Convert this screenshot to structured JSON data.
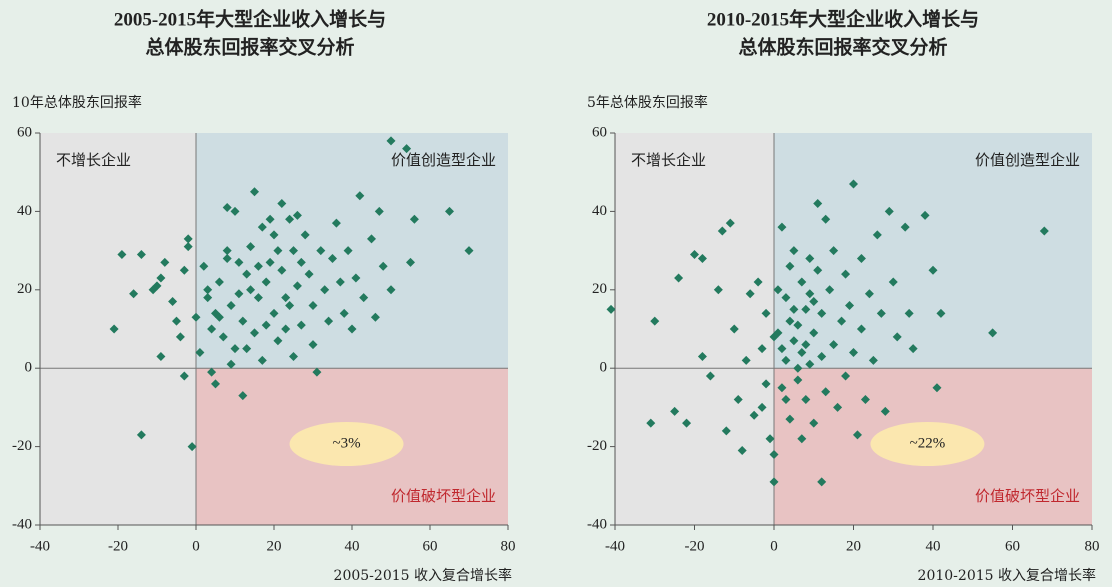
{
  "chart_data": [
    {
      "type": "scatter",
      "title": [
        "2005-2015年大型企业收入增长与",
        "总体股东回报率交叉分析"
      ],
      "ylabel": "10年总体股东回报率",
      "xlabel": "2005-2015 收入复合增长率",
      "quadrant_labels": {
        "no_growth": "不增长企业",
        "value_creating": "价值创造型企业",
        "value_destroying": "价值破坏型企业"
      },
      "callout": "~3%",
      "xlim": [
        -40,
        80
      ],
      "xticks": [
        -40,
        -20,
        0,
        20,
        40,
        60,
        80
      ],
      "ylim": [
        -40,
        60
      ],
      "yticks": [
        -40,
        -20,
        0,
        20,
        40,
        60
      ],
      "series": [
        {
          "color": "#237a5e",
          "x": [
            -21,
            -19,
            -16,
            -14,
            -14,
            -11,
            -10,
            -9,
            -9,
            -8,
            -6,
            -5,
            -4,
            -3,
            -3,
            -2,
            -1,
            -2,
            0,
            1,
            2,
            3,
            4,
            5,
            5,
            6,
            7,
            8,
            8,
            9,
            10,
            10,
            11,
            12,
            12,
            13,
            14,
            15,
            15,
            16,
            17,
            17,
            18,
            19,
            20,
            20,
            21,
            22,
            22,
            23,
            24,
            25,
            25,
            26,
            27,
            28,
            29,
            30,
            30,
            31,
            32,
            33,
            34,
            35,
            36,
            37,
            38,
            39,
            40,
            41,
            42,
            43,
            45,
            46,
            47,
            48,
            50,
            50,
            54,
            55,
            56,
            65,
            70,
            3,
            6,
            8,
            11,
            14,
            16,
            18,
            21,
            24,
            27,
            9,
            13,
            4,
            19,
            23,
            26
          ],
          "values": [
            10,
            29,
            19,
            29,
            -17,
            20,
            21,
            3,
            23,
            27,
            17,
            12,
            8,
            -2,
            25,
            31,
            -20,
            33,
            13,
            4,
            26,
            18,
            10,
            14,
            -4,
            22,
            8,
            41,
            28,
            16,
            5,
            40,
            19,
            12,
            -7,
            24,
            31,
            45,
            9,
            18,
            2,
            36,
            22,
            27,
            14,
            34,
            7,
            42,
            25,
            18,
            38,
            30,
            3,
            21,
            11,
            34,
            24,
            16,
            6,
            -1,
            30,
            20,
            12,
            28,
            37,
            22,
            14,
            30,
            10,
            23,
            44,
            18,
            33,
            13,
            40,
            26,
            58,
            20,
            56,
            27,
            38,
            40,
            30,
            20,
            13,
            30,
            27,
            20,
            26,
            11,
            30,
            16,
            27,
            1,
            5,
            -1,
            38,
            10,
            39
          ]
        }
      ]
    },
    {
      "type": "scatter",
      "title": [
        "2010-2015年大型企业收入增长与",
        "总体股东回报率交叉分析"
      ],
      "ylabel": "5年总体股东回报率",
      "xlabel": "2010-2015 收入复合增长率",
      "quadrant_labels": {
        "no_growth": "不增长企业",
        "value_creating": "价值创造型企业",
        "value_destroying": "价值破坏型企业"
      },
      "callout": "~22%",
      "xlim": [
        -40,
        80
      ],
      "xticks": [
        -40,
        -20,
        0,
        20,
        40,
        60,
        80
      ],
      "ylim": [
        -40,
        60
      ],
      "yticks": [
        -40,
        -20,
        0,
        20,
        40,
        60
      ],
      "series": [
        {
          "color": "#237a5e",
          "x": [
            -41,
            -30,
            -31,
            -25,
            -24,
            -22,
            -20,
            -18,
            -18,
            -16,
            -14,
            -13,
            -12,
            -11,
            -10,
            -9,
            -8,
            -7,
            -6,
            -5,
            -4,
            -3,
            -2,
            -2,
            -1,
            0,
            0,
            1,
            2,
            2,
            3,
            3,
            4,
            4,
            5,
            5,
            6,
            6,
            7,
            7,
            8,
            8,
            9,
            9,
            10,
            10,
            11,
            11,
            12,
            12,
            12,
            13,
            13,
            14,
            15,
            15,
            16,
            17,
            18,
            18,
            19,
            20,
            20,
            21,
            22,
            22,
            23,
            24,
            25,
            26,
            27,
            28,
            29,
            30,
            31,
            33,
            34,
            35,
            38,
            40,
            41,
            42,
            55,
            68,
            1,
            3,
            5,
            7,
            9,
            2,
            4,
            6,
            8,
            10,
            -3,
            0
          ],
          "values": [
            15,
            12,
            -14,
            -11,
            23,
            -14,
            29,
            28,
            3,
            -2,
            20,
            35,
            -16,
            37,
            10,
            -8,
            -21,
            2,
            19,
            -12,
            22,
            5,
            -4,
            14,
            -18,
            -22,
            -29,
            9,
            36,
            -5,
            18,
            2,
            26,
            -13,
            7,
            30,
            11,
            -3,
            4,
            22,
            15,
            -8,
            1,
            19,
            9,
            -14,
            42,
            25,
            3,
            -29,
            14,
            38,
            -6,
            20,
            6,
            30,
            -10,
            12,
            24,
            -2,
            16,
            4,
            47,
            -17,
            28,
            10,
            -8,
            19,
            2,
            34,
            14,
            -11,
            40,
            22,
            8,
            36,
            14,
            5,
            39,
            25,
            -5,
            14,
            9,
            35,
            20,
            -8,
            15,
            -18,
            28,
            5,
            12,
            0,
            6,
            17,
            -10,
            8
          ]
        }
      ]
    }
  ]
}
